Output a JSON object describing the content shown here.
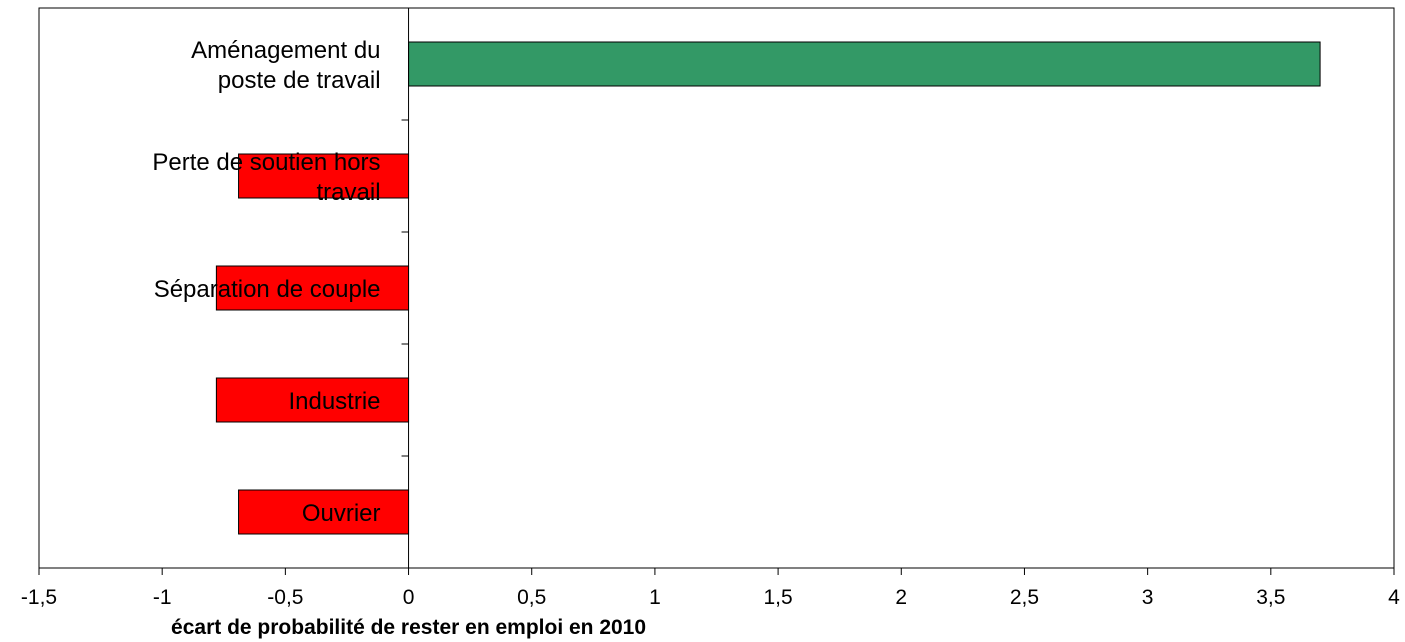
{
  "chart_data": {
    "type": "bar",
    "orientation": "horizontal",
    "categories": [
      [
        "Aménagement du",
        "poste de travail"
      ],
      [
        "Perte de soutien hors",
        "travail"
      ],
      [
        "Séparation de couple"
      ],
      [
        "Industrie"
      ],
      [
        "Ouvrier"
      ]
    ],
    "values": [
      3.7,
      -0.69,
      -0.78,
      -0.78,
      -0.69
    ],
    "bar_colors": [
      "#339966",
      "#ff0000",
      "#ff0000",
      "#ff0000",
      "#ff0000"
    ],
    "xlim": [
      -1.5,
      4
    ],
    "xticks": [
      -1.5,
      -1,
      -0.5,
      0,
      0.5,
      1,
      1.5,
      2,
      2.5,
      3,
      3.5,
      4
    ],
    "xtick_labels": [
      "-1,5",
      "-1",
      "-0,5",
      "0",
      "0,5",
      "1",
      "1,5",
      "2",
      "2,5",
      "3",
      "3,5",
      "4"
    ],
    "xlabel": "écart de probabilité de rester en emploi en 2010",
    "ylabel": "",
    "title": "",
    "grid": false,
    "legend": "none"
  }
}
